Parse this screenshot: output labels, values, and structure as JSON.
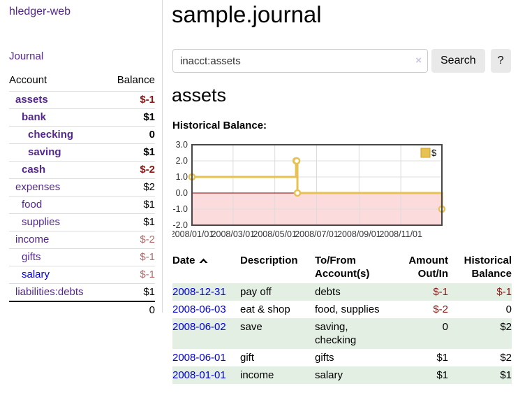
{
  "sidebar": {
    "app_title": "hledger-web",
    "journal_label": "Journal",
    "accounts": {
      "col_account": "Account",
      "col_balance": "Balance",
      "rows": [
        {
          "name": "assets",
          "depth": 0,
          "bold": true,
          "balance": "$-1"
        },
        {
          "name": "bank",
          "depth": 1,
          "bold": true,
          "balance": "$1"
        },
        {
          "name": "checking",
          "depth": 2,
          "bold": true,
          "balance": "0"
        },
        {
          "name": "saving",
          "depth": 2,
          "bold": true,
          "balance": "$1"
        },
        {
          "name": "cash",
          "depth": 1,
          "bold": true,
          "balance": "$-2"
        },
        {
          "name": "expenses",
          "depth": 0,
          "bold": false,
          "balance": "$2"
        },
        {
          "name": "food",
          "depth": 1,
          "bold": false,
          "balance": "$1"
        },
        {
          "name": "supplies",
          "depth": 1,
          "bold": false,
          "balance": "$1"
        },
        {
          "name": "income",
          "depth": 0,
          "bold": false,
          "balance": "$-2"
        },
        {
          "name": "gifts",
          "depth": 1,
          "bold": false,
          "balance": "$-1"
        },
        {
          "name": "salary",
          "depth": 1,
          "bold": false,
          "balance": "$-1"
        },
        {
          "name": "liabilities:debts",
          "depth": 0,
          "bold": false,
          "balance": "$1"
        }
      ],
      "total": "0"
    }
  },
  "header": {
    "title": "sample.journal"
  },
  "search": {
    "value": "inacct:assets",
    "clear_icon": "×",
    "button_label": "Search",
    "help_label": "?"
  },
  "account_page": {
    "heading": "assets",
    "chart_label": "Historical Balance:"
  },
  "chart_data": {
    "type": "line",
    "title": "Historical Balance",
    "step": true,
    "series": [
      {
        "name": "$",
        "points": [
          [
            "2008-01-01",
            1
          ],
          [
            "2008-06-01",
            2
          ],
          [
            "2008-06-02",
            2
          ],
          [
            "2008-06-03",
            0
          ],
          [
            "2008-12-31",
            -1
          ]
        ]
      }
    ],
    "x_range": [
      "2008-01-01",
      "2008-12-31"
    ],
    "x_ticks": [
      "2008/01/01",
      "2008/03/01",
      "2008/05/01",
      "2008/07/01",
      "2008/09/01",
      "2008/11/01"
    ],
    "y_ticks": [
      3.0,
      2.0,
      1.0,
      0.0,
      -1.0,
      -2.0
    ],
    "ylim": [
      -2,
      3
    ],
    "grid": true,
    "legend": {
      "label": "$",
      "position": "top-right"
    },
    "colors": {
      "line": "#e7c151",
      "marker_fill": "#ffffff",
      "negative_region": "#fbdbdb",
      "zero_line": "#8b0000",
      "grid": "#dcdcdc",
      "border": "#474747",
      "legend_border": "#c9a227"
    }
  },
  "register": {
    "columns": {
      "date": "Date",
      "description": "Description",
      "accounts_line1": "To/From",
      "accounts_line2": "Account(s)",
      "amount_line1": "Amount",
      "amount_line2": "Out/In",
      "balance_line1": "Historical",
      "balance_line2": "Balance"
    },
    "rows": [
      {
        "date": "2008-12-31",
        "description": "pay off",
        "accounts": "debts",
        "amount": "$-1",
        "balance": "$-1"
      },
      {
        "date": "2008-06-03",
        "description": "eat & shop",
        "accounts": "food, supplies",
        "amount": "$-2",
        "balance": "0"
      },
      {
        "date": "2008-06-02",
        "description": "save",
        "accounts": "saving, checking",
        "amount": "0",
        "balance": "$2"
      },
      {
        "date": "2008-06-01",
        "description": "gift",
        "accounts": "gifts",
        "amount": "$1",
        "balance": "$2"
      },
      {
        "date": "2008-01-01",
        "description": "income",
        "accounts": "salary",
        "amount": "$1",
        "balance": "$1"
      }
    ]
  },
  "colors": {
    "link_purple": "#54278f",
    "link_blue": "#0000dd",
    "negative_strong": "#8f1515",
    "negative_soft": "#b36b6b",
    "row_shade_green": "#e2efe2"
  }
}
